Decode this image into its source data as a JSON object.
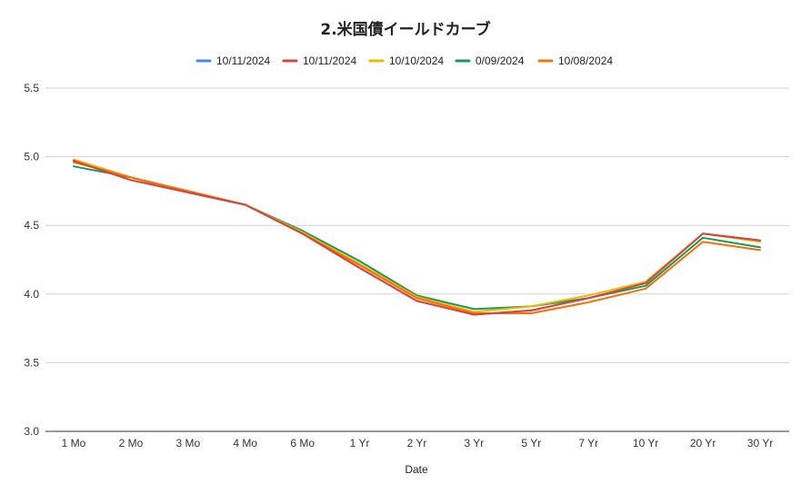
{
  "chart_data": {
    "type": "line",
    "title": "2.米国債イールドカーブ",
    "xlabel": "Date",
    "ylabel": "",
    "ylim": [
      3.0,
      5.5
    ],
    "yticks": [
      "3.0",
      "3.5",
      "4.0",
      "4.5",
      "5.0",
      "5.5"
    ],
    "grid": true,
    "legend_position": "top",
    "categories": [
      "1 Mo",
      "2 Mo",
      "3 Mo",
      "4 Mo",
      "6 Mo",
      "1 Yr",
      "2 Yr",
      "3 Yr",
      "5 Yr",
      "7 Yr",
      "10 Yr",
      "20 Yr",
      "30 Yr"
    ],
    "series": [
      {
        "name": "10/11/2024",
        "color": "#4285f4",
        "values": [
          4.97,
          4.83,
          4.74,
          4.65,
          4.44,
          4.19,
          3.95,
          3.85,
          3.88,
          3.97,
          4.08,
          4.44,
          4.39
        ]
      },
      {
        "name": "10/11/2024",
        "color": "#db4437",
        "values": [
          4.97,
          4.83,
          4.74,
          4.65,
          4.44,
          4.19,
          3.95,
          3.85,
          3.88,
          3.97,
          4.08,
          4.44,
          4.39
        ]
      },
      {
        "name": "10/10/2024",
        "color": "#f4b400",
        "values": [
          4.98,
          4.85,
          4.75,
          4.65,
          4.45,
          4.22,
          3.98,
          3.87,
          3.91,
          3.99,
          4.09,
          4.44,
          4.38
        ]
      },
      {
        "name": "0/09/2024",
        "color": "#0f9d58",
        "values": [
          4.93,
          4.85,
          4.74,
          4.65,
          4.46,
          4.24,
          3.99,
          3.89,
          3.91,
          3.97,
          4.06,
          4.41,
          4.34
        ]
      },
      {
        "name": "10/08/2024",
        "color": "#ff6d01",
        "values": [
          4.96,
          4.85,
          4.75,
          4.65,
          4.44,
          4.21,
          3.97,
          3.86,
          3.86,
          3.94,
          4.04,
          4.38,
          4.32
        ]
      }
    ]
  }
}
